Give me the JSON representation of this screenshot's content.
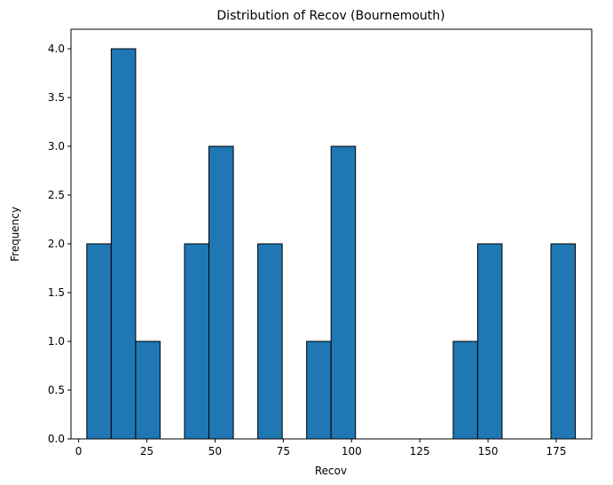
{
  "chart_data": {
    "type": "bar",
    "title": "Distribution of Recov (Bournemouth)",
    "xlabel": "Recov",
    "ylabel": "Frequency",
    "bar_color": "#1f77b4",
    "edge_color": "#000000",
    "xlim": [
      -2.8,
      188.0
    ],
    "ylim": [
      0,
      4.2
    ],
    "xticks": [
      0,
      25,
      50,
      75,
      100,
      125,
      150,
      175
    ],
    "yticks": [
      0.0,
      0.5,
      1.0,
      1.5,
      2.0,
      2.5,
      3.0,
      3.5,
      4.0
    ],
    "yticklabels": [
      "0.0",
      "0.5",
      "1.0",
      "1.5",
      "2.0",
      "2.5",
      "3.0",
      "3.5",
      "4.0"
    ],
    "bin_edges": [
      3,
      11.95,
      20.9,
      29.85,
      38.8,
      47.75,
      56.7,
      65.65,
      74.6,
      83.55,
      92.5,
      101.45,
      110.4,
      119.35,
      128.3,
      137.25,
      146.2,
      155.15,
      164.1,
      173.05,
      182
    ],
    "values": [
      2,
      4,
      1,
      0,
      2,
      3,
      0,
      2,
      0,
      1,
      3,
      0,
      0,
      0,
      0,
      1,
      2,
      0,
      0,
      2
    ],
    "grid": false
  }
}
